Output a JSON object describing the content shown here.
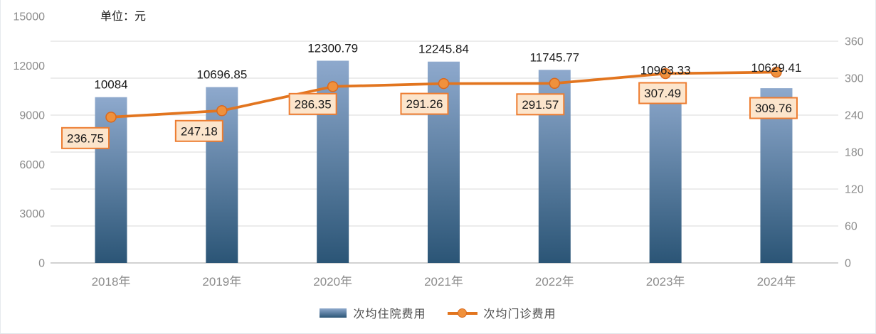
{
  "chart": {
    "unit_label": "单位：元"
  },
  "chart_data": {
    "type": "combo",
    "title": "",
    "categories": [
      "2018年",
      "2019年",
      "2020年",
      "2021年",
      "2022年",
      "2023年",
      "2024年"
    ],
    "series": [
      {
        "name": "次均住院费用",
        "type": "bar",
        "axis": "left",
        "values": [
          10084,
          10696.85,
          12300.79,
          12245.84,
          11745.77,
          10963.33,
          10629.41
        ],
        "labels": [
          "10084",
          "10696.85",
          "12300.79",
          "12245.84",
          "11745.77",
          "10963.33",
          "10629.41"
        ]
      },
      {
        "name": "次均门诊费用",
        "type": "line",
        "axis": "right",
        "values": [
          236.75,
          247.18,
          286.35,
          291.26,
          291.57,
          307.49,
          309.76
        ],
        "labels": [
          "236.75",
          "247.18",
          "286.35",
          "291.26",
          "291.57",
          "307.49",
          "309.76"
        ]
      }
    ],
    "left_axis": {
      "ticks": [
        0,
        3000,
        6000,
        9000,
        12000,
        15000
      ],
      "range": [
        0,
        15000
      ]
    },
    "right_axis": {
      "ticks": [
        0,
        60,
        120,
        180,
        240,
        300,
        360
      ],
      "range": [
        0,
        360
      ]
    },
    "grid": true,
    "legend_position": "bottom",
    "colors": {
      "bar_top": "#8EA9CD",
      "bar_bottom": "#2B5576",
      "line": "#E2751F",
      "marker_fill": "#F0913C",
      "marker_stroke": "#D9691F",
      "label_box_fill": "#FCE5CC",
      "label_box_border": "#ED7D31",
      "gridline": "#D9D9D9",
      "baseline": "#C3C3C3",
      "axis_text": "#8C8C8C",
      "data_text": "#1A1A1A",
      "legend_text": "#4D4D4D"
    }
  }
}
